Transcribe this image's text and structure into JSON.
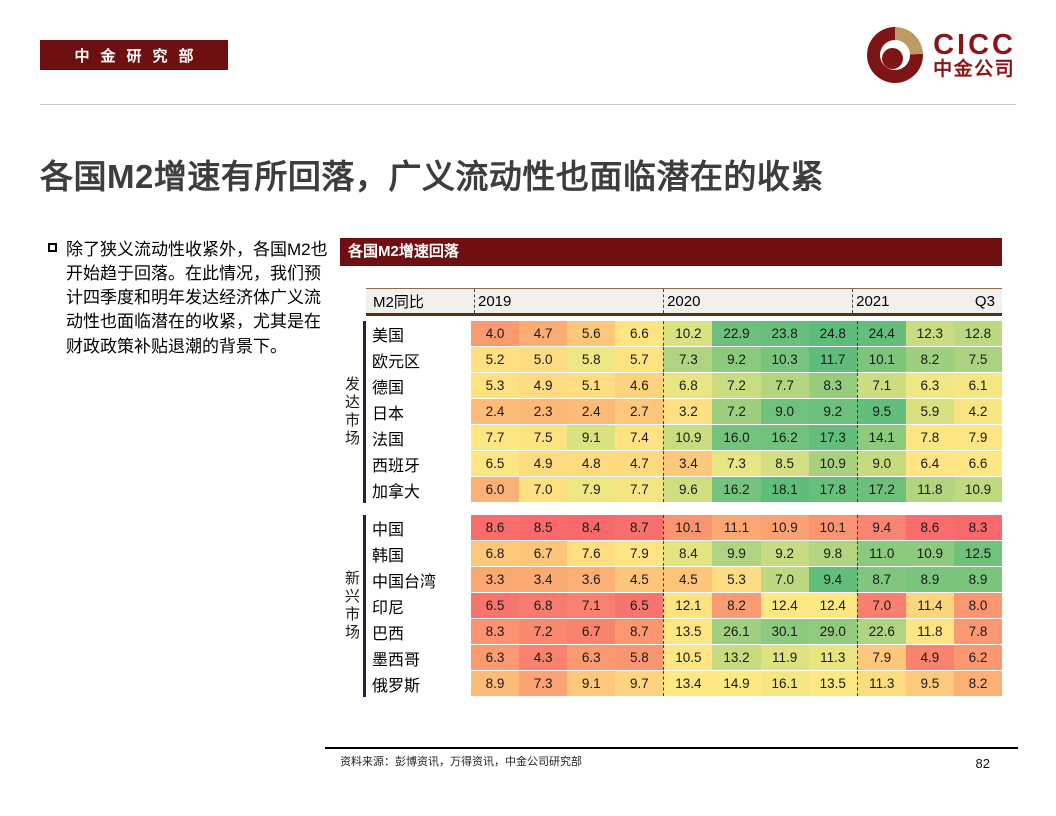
{
  "header": {
    "badge": "中金研究部",
    "logo_en": "CICC",
    "logo_cn": "中金公司"
  },
  "slide": {
    "title": "各国M2增速有所回落，广义流动性也面临潜在的收紧",
    "bullet": "除了狭义流动性收紧外，各国M2也开始趋于回落。在此情况，我们预计四季度和明年发达经济体广义流动性也面临潜在的收紧，尤其是在财政政策补贴退潮的背景下。"
  },
  "footer": {
    "source": "资料来源：彭博资讯，万得资讯，中金公司研究部",
    "page_number": "82"
  },
  "colors": {
    "brand_maroon": "#6E1011",
    "logo_red": "#8A1519",
    "logo_gold": "#BD9B62",
    "header_bg": "#F2F0ED",
    "header_border_brown": "#52321B",
    "group_bar": "#232043",
    "heat_min_red": "#F8696B",
    "heat_mid_yellow": "#FFEB84",
    "heat_max_green": "#63BE7B"
  },
  "chart_data": {
    "type": "heatmap",
    "title": "各国M2增速回落",
    "unit_label": "M2同比",
    "columns": [
      "2019Q1",
      "2019Q2",
      "2019Q3",
      "2019Q4",
      "2020Q1",
      "2020Q2",
      "2020Q3",
      "2020Q4",
      "2021Q1",
      "2021Q2",
      "2021Q3"
    ],
    "col_group_labels": [
      {
        "label": "2019",
        "start_index": 0
      },
      {
        "label": "2020",
        "start_index": 4
      },
      {
        "label": "2021",
        "start_index": 8
      }
    ],
    "last_col_label": "Q3",
    "groups": [
      {
        "label": "发达市场",
        "rows": [
          {
            "name": "美国",
            "values": [
              "4.0",
              "4.7",
              "5.6",
              "6.6",
              "10.2",
              "22.9",
              "23.8",
              "24.8",
              "24.4",
              "12.3",
              "12.8"
            ],
            "colors": [
              "#F99B6E",
              "#FBAD73",
              "#FCC77B",
              "#FEE483",
              "#D9E182",
              "#6DC07C",
              "#68BF7C",
              "#5EBC7A",
              "#63BE7B",
              "#C8DC81",
              "#BCD880"
            ]
          },
          {
            "name": "欧元区",
            "values": [
              "5.2",
              "5.0",
              "5.8",
              "5.7",
              "7.3",
              "9.2",
              "10.3",
              "11.7",
              "10.1",
              "8.2",
              "7.5"
            ],
            "colors": [
              "#FEE083",
              "#FEDC81",
              "#EEE684",
              "#FEE383",
              "#AFD37F",
              "#8BC97D",
              "#79C47C",
              "#5FBC7A",
              "#7EC57C",
              "#9ECF7E",
              "#ABD27F"
            ]
          },
          {
            "name": "德国",
            "values": [
              "5.3",
              "4.9",
              "5.1",
              "4.6",
              "6.8",
              "7.2",
              "7.7",
              "8.3",
              "7.1",
              "6.3",
              "6.1"
            ],
            "colors": [
              "#FEE282",
              "#FEDA80",
              "#FEDE81",
              "#FDD37E",
              "#E9E583",
              "#C9DC80",
              "#B4D57F",
              "#96CC7E",
              "#CCDC81",
              "#EFE784",
              "#F4E782"
            ]
          },
          {
            "name": "日本",
            "values": [
              "2.4",
              "2.3",
              "2.4",
              "2.7",
              "3.2",
              "7.2",
              "9.0",
              "9.2",
              "9.5",
              "5.9",
              "4.2"
            ],
            "colors": [
              "#FCBB76",
              "#FCB976",
              "#FCBB76",
              "#FDC67A",
              "#FEDF82",
              "#9ECF7E",
              "#70C17B",
              "#6CC07B",
              "#63BE7B",
              "#D9E081",
              "#F8E682"
            ]
          },
          {
            "name": "法国",
            "values": [
              "7.7",
              "7.5",
              "9.1",
              "7.4",
              "10.9",
              "16.0",
              "16.2",
              "17.3",
              "14.1",
              "7.8",
              "7.9"
            ],
            "colors": [
              "#FEE683",
              "#FEE383",
              "#D9E181",
              "#FEE283",
              "#C9DC80",
              "#74C37C",
              "#70C27C",
              "#63BE7B",
              "#8CCA7D",
              "#FEE583",
              "#FBE683"
            ]
          },
          {
            "name": "西班牙",
            "values": [
              "6.5",
              "4.9",
              "4.8",
              "4.7",
              "3.4",
              "7.3",
              "8.5",
              "10.9",
              "9.0",
              "6.4",
              "6.6"
            ],
            "colors": [
              "#FEE583",
              "#FEDB81",
              "#FEDA81",
              "#FED980",
              "#FCC87C",
              "#E8E583",
              "#D3DF82",
              "#A7D17F",
              "#C6DB80",
              "#FEE483",
              "#FEE683"
            ]
          },
          {
            "name": "加拿大",
            "values": [
              "6.0",
              "7.0",
              "7.9",
              "7.7",
              "9.6",
              "16.2",
              "18.1",
              "17.8",
              "17.2",
              "11.8",
              "10.9"
            ],
            "colors": [
              "#FBB175",
              "#FEDF82",
              "#EDE684",
              "#F3E682",
              "#D0DE81",
              "#75C37C",
              "#5FBC7A",
              "#66BF7B",
              "#6CC07C",
              "#B3D47F",
              "#C0D980"
            ]
          }
        ]
      },
      {
        "label": "新兴市场",
        "rows": [
          {
            "name": "中国",
            "values": [
              "8.6",
              "8.5",
              "8.4",
              "8.7",
              "10.1",
              "11.1",
              "10.9",
              "10.1",
              "9.4",
              "8.6",
              "8.3"
            ],
            "colors": [
              "#F86C6B",
              "#F86A6B",
              "#F8696B",
              "#F8706C",
              "#FA9572",
              "#FBA775",
              "#FBA274",
              "#FA9572",
              "#F98570",
              "#F86C6B",
              "#F8696B"
            ]
          },
          {
            "name": "韩国",
            "values": [
              "6.8",
              "6.7",
              "7.6",
              "7.9",
              "8.4",
              "9.9",
              "9.2",
              "9.8",
              "11.0",
              "10.9",
              "12.5"
            ],
            "colors": [
              "#FDC77B",
              "#FDC57A",
              "#FEDE81",
              "#FEE482",
              "#E3E382",
              "#AFD47F",
              "#C9DB80",
              "#B3D57F",
              "#8BCA7D",
              "#8DCA7E",
              "#6FC17C"
            ]
          },
          {
            "name": "中国台湾",
            "values": [
              "3.3",
              "3.4",
              "3.6",
              "4.5",
              "4.5",
              "5.3",
              "7.0",
              "9.4",
              "8.7",
              "8.9",
              "8.9"
            ],
            "colors": [
              "#FBA873",
              "#FBAA74",
              "#FBAE75",
              "#FCC57A",
              "#FCC57A",
              "#FEDC81",
              "#BCD880",
              "#63BE7B",
              "#82C67D",
              "#7AC47C",
              "#7AC47C"
            ]
          },
          {
            "name": "印尼",
            "values": [
              "6.5",
              "6.8",
              "7.1",
              "6.5",
              "12.1",
              "8.2",
              "12.4",
              "12.4",
              "7.0",
              "11.4",
              "8.0"
            ],
            "colors": [
              "#F8756D",
              "#F97B6E",
              "#F9816F",
              "#F8756D",
              "#FEE382",
              "#FA9B72",
              "#FEE883",
              "#FEE883",
              "#F97F6E",
              "#FDD57F",
              "#FA9771"
            ]
          },
          {
            "name": "巴西",
            "values": [
              "8.3",
              "7.2",
              "6.7",
              "8.7",
              "13.5",
              "26.1",
              "30.1",
              "29.0",
              "22.6",
              "11.8",
              "7.8"
            ],
            "colors": [
              "#FA9470",
              "#F98A70",
              "#F8836E",
              "#FA9771",
              "#FEE683",
              "#A0D07F",
              "#8CCA7E",
              "#90CB7E",
              "#AED47F",
              "#FEE583",
              "#FA9872"
            ]
          },
          {
            "name": "墨西哥",
            "values": [
              "6.3",
              "4.3",
              "6.3",
              "5.8",
              "10.5",
              "13.2",
              "11.9",
              "11.3",
              "7.9",
              "4.9",
              "6.2"
            ],
            "colors": [
              "#FA9A71",
              "#F9816F",
              "#FA9A71",
              "#FA9571",
              "#FEE584",
              "#C9DB80",
              "#DFE283",
              "#E9E583",
              "#FDC77C",
              "#F9836F",
              "#FA9971"
            ]
          },
          {
            "name": "俄罗斯",
            "values": [
              "8.9",
              "7.3",
              "9.1",
              "9.7",
              "13.4",
              "14.9",
              "16.1",
              "13.5",
              "11.3",
              "9.5",
              "8.2"
            ],
            "colors": [
              "#FCBC79",
              "#FBA374",
              "#FDC77C",
              "#FDD47F",
              "#FEE883",
              "#FEE983",
              "#F4E682",
              "#FEE883",
              "#FDDC80",
              "#FCC97D",
              "#FBB176"
            ]
          }
        ]
      }
    ]
  }
}
